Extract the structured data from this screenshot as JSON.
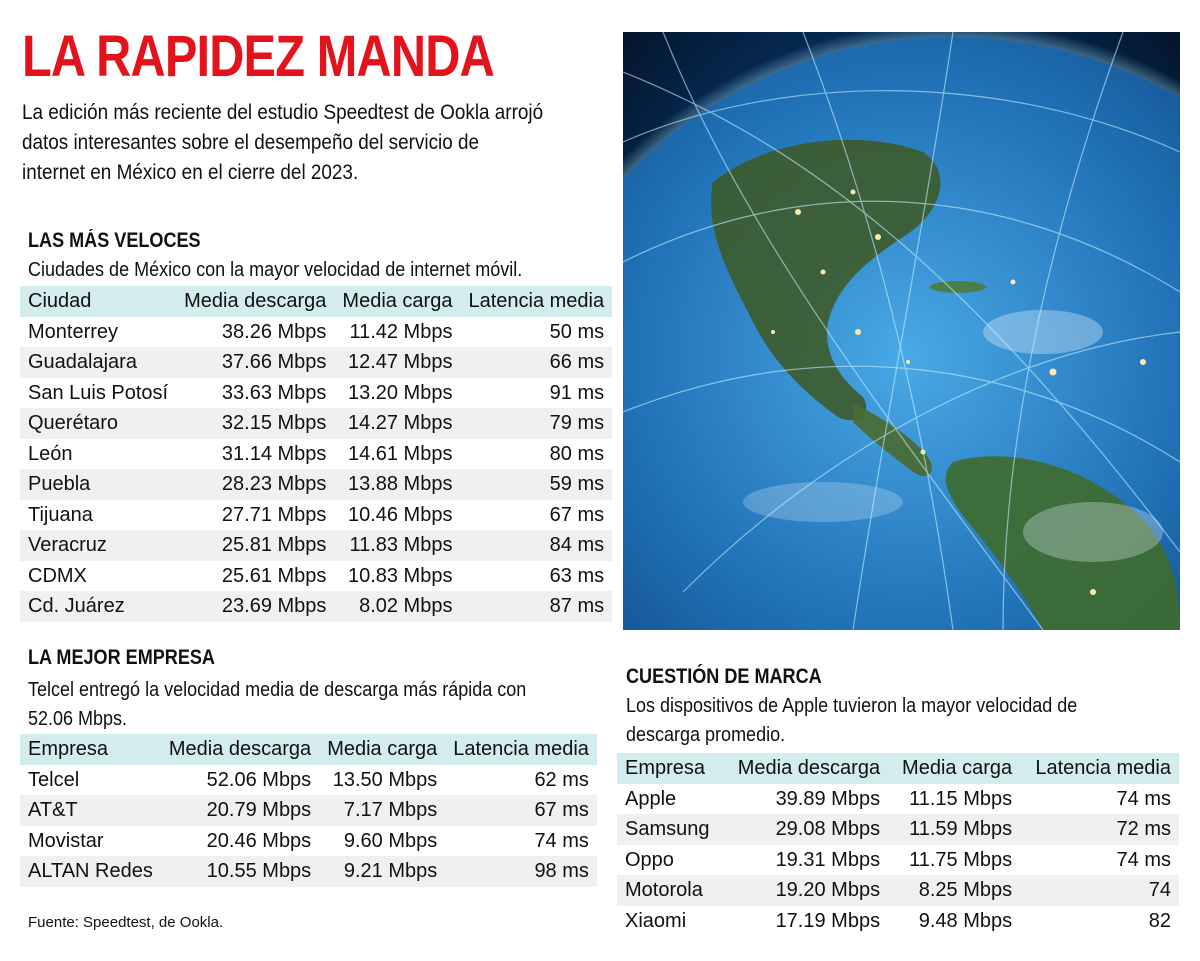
{
  "title": "LA RAPIDEZ MANDA",
  "intro": "La edición más reciente del estudio Speedtest de Ookla arrojó datos interesantes sobre el desempeño del servicio de internet en México en el cierre del 2023.",
  "section_cities": {
    "heading": "LAS MÁS VELOCES",
    "subtitle": "Ciudades de México con la mayor velocidad de internet móvil.",
    "columns": [
      "Ciudad",
      "Media descarga",
      "Media carga",
      "Latencia media"
    ],
    "rows": [
      [
        "Monterrey",
        "38.26 Mbps",
        "11.42 Mbps",
        "50 ms"
      ],
      [
        "Guadalajara",
        "37.66 Mbps",
        "12.47 Mbps",
        "66 ms"
      ],
      [
        "San Luis Potosí",
        "33.63 Mbps",
        "13.20 Mbps",
        "91 ms"
      ],
      [
        "Querétaro",
        "32.15 Mbps",
        "14.27 Mbps",
        "79 ms"
      ],
      [
        "León",
        "31.14 Mbps",
        "14.61 Mbps",
        "80 ms"
      ],
      [
        "Puebla",
        "28.23 Mbps",
        "13.88 Mbps",
        "59 ms"
      ],
      [
        "Tijuana",
        "27.71 Mbps",
        "10.46 Mbps",
        "67 ms"
      ],
      [
        "Veracruz",
        "25.81 Mbps",
        "11.83 Mbps",
        "84 ms"
      ],
      [
        "CDMX",
        "25.61 Mbps",
        "10.83 Mbps",
        "63 ms"
      ],
      [
        "Cd. Juárez",
        "23.69 Mbps",
        "8.02 Mbps",
        "87 ms"
      ]
    ]
  },
  "section_company": {
    "heading": "LA MEJOR EMPRESA",
    "subtitle": "Telcel entregó la velocidad media de descarga más rápida con 52.06 Mbps.",
    "columns": [
      "Empresa",
      "Media descarga",
      "Media carga",
      "Latencia media"
    ],
    "rows": [
      [
        "Telcel",
        "52.06 Mbps",
        "13.50 Mbps",
        "62 ms"
      ],
      [
        "AT&T",
        "20.79 Mbps",
        "7.17 Mbps",
        "67 ms"
      ],
      [
        "Movistar",
        "20.46 Mbps",
        "9.60 Mbps",
        "74 ms"
      ],
      [
        "ALTAN Redes",
        "10.55 Mbps",
        "9.21 Mbps",
        "98 ms"
      ]
    ]
  },
  "section_brand": {
    "heading": "CUESTIÓN DE MARCA",
    "subtitle": "Los dispositivos de Apple tuvieron la mayor velocidad de descarga promedio.",
    "columns": [
      "Empresa",
      "Media descarga",
      "Media carga",
      "Latencia media"
    ],
    "rows": [
      [
        "Apple",
        "39.89 Mbps",
        "11.15 Mbps",
        "74 ms"
      ],
      [
        "Samsung",
        "29.08 Mbps",
        "11.59 Mbps",
        "72 ms"
      ],
      [
        "Oppo",
        "19.31 Mbps",
        "11.75 Mbps",
        "74 ms"
      ],
      [
        "Motorola",
        "19.20 Mbps",
        "8.25 Mbps",
        "74"
      ],
      [
        "Xiaomi",
        "17.19 Mbps",
        "9.48 Mbps",
        "82"
      ]
    ]
  },
  "source": "Fuente: Speedtest, de Ookla.",
  "colors": {
    "title_red": "#e4131b",
    "header_band": "#d3eced",
    "row_stripe": "#f0f0f0"
  }
}
